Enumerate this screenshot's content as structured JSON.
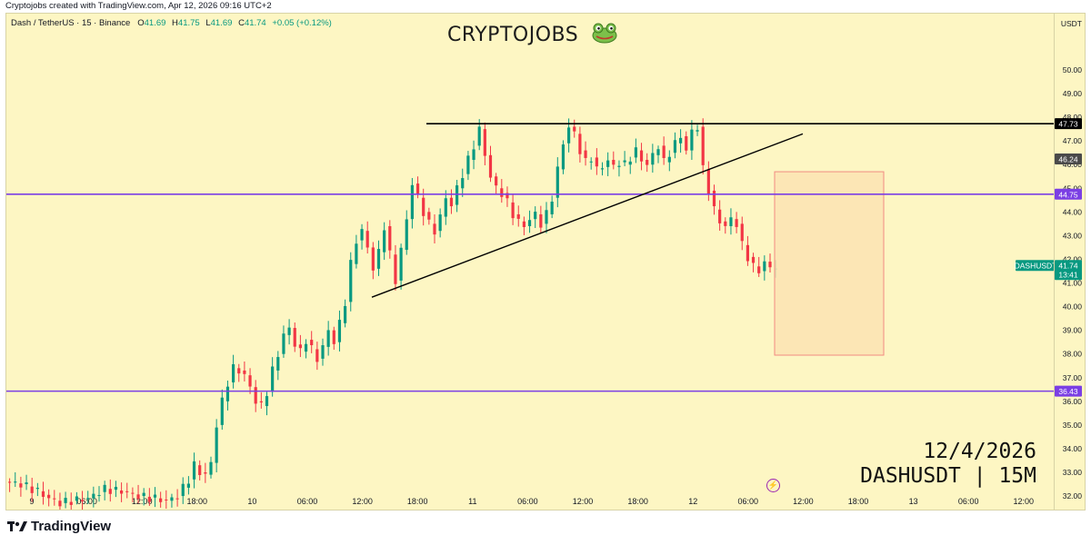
{
  "topbar": {
    "text": "Cryptojobs created with TradingView.com, Apr 12, 2026 09:16 UTC+2"
  },
  "legend": {
    "symbol": "Dash / TetherUS · 15 · Binance",
    "o_label": "O",
    "o": "41.69",
    "h_label": "H",
    "h": "41.75",
    "l_label": "L",
    "l": "41.69",
    "c_label": "C",
    "c": "41.74",
    "change": "+0.05 (+0.12%)"
  },
  "watermark": {
    "text": "CRYPTOJOBS",
    "icon": "frog-icon"
  },
  "signature": {
    "date": "12/4/2026",
    "pair": "DASHUSDT | 15M"
  },
  "footer": {
    "brand": "TradingView",
    "icon": "tradingview-logo-icon"
  },
  "colors": {
    "background": "#fdf6c3",
    "up": "#089981",
    "down": "#f23645",
    "level_line": "#7b3fe4",
    "trendline": "#000000",
    "target_box_fill": "#fbe3b3",
    "target_box_border": "#f28b82"
  },
  "chart_data": {
    "type": "candlestick",
    "symbol": "DASHUSDT",
    "timeframe": "15",
    "currency": "USDT",
    "ylim": [
      31.3,
      50.9
    ],
    "yticks": [
      "50.00",
      "49.00",
      "48.00",
      "47.00",
      "46.00",
      "45.00",
      "44.00",
      "43.00",
      "42.00",
      "41.00",
      "40.00",
      "39.00",
      "38.00",
      "37.00",
      "36.00",
      "35.00",
      "34.00",
      "33.00",
      "32.00"
    ],
    "xticks": [
      "9",
      "06:00",
      "12:00",
      "18:00",
      "10",
      "06:00",
      "12:00",
      "18:00",
      "11",
      "06:00",
      "12:00",
      "18:00",
      "12",
      "06:00",
      "12:00",
      "18:00",
      "13",
      "06:00",
      "12:00"
    ],
    "price_path": [
      [
        0,
        32.6
      ],
      [
        3,
        32.5
      ],
      [
        6,
        32.2
      ],
      [
        8,
        31.9
      ],
      [
        10,
        31.7
      ],
      [
        12,
        31.8
      ],
      [
        15,
        31.9
      ],
      [
        18,
        32.3
      ],
      [
        21,
        32.2
      ],
      [
        24,
        32.0
      ],
      [
        27,
        31.9
      ],
      [
        29,
        31.8
      ],
      [
        31,
        32.0
      ],
      [
        33,
        32.7
      ],
      [
        34,
        33.3
      ],
      [
        35,
        33.0
      ],
      [
        36,
        32.9
      ],
      [
        37,
        33.4
      ],
      [
        38,
        35.0
      ],
      [
        39,
        36.0
      ],
      [
        40,
        36.8
      ],
      [
        41,
        37.4
      ],
      [
        42,
        37.3
      ],
      [
        43,
        37.1
      ],
      [
        44,
        36.6
      ],
      [
        45,
        36.0
      ],
      [
        46,
        35.8
      ],
      [
        47,
        36.4
      ],
      [
        48,
        37.3
      ],
      [
        49,
        38.0
      ],
      [
        50,
        38.8
      ],
      [
        51,
        39.1
      ],
      [
        52,
        38.4
      ],
      [
        53,
        38.1
      ],
      [
        54,
        38.6
      ],
      [
        55,
        38.2
      ],
      [
        56,
        37.8
      ],
      [
        57,
        38.3
      ],
      [
        58,
        39.0
      ],
      [
        59,
        38.5
      ],
      [
        60,
        39.3
      ],
      [
        61,
        40.2
      ],
      [
        62,
        41.8
      ],
      [
        63,
        42.8
      ],
      [
        64,
        43.2
      ],
      [
        65,
        42.5
      ],
      [
        66,
        41.6
      ],
      [
        67,
        42.3
      ],
      [
        68,
        43.4
      ],
      [
        69,
        42.2
      ],
      [
        70,
        41.1
      ],
      [
        71,
        42.4
      ],
      [
        72,
        43.7
      ],
      [
        73,
        45.2
      ],
      [
        74,
        44.6
      ],
      [
        75,
        44.0
      ],
      [
        76,
        43.5
      ],
      [
        77,
        43.2
      ],
      [
        78,
        43.8
      ],
      [
        79,
        44.6
      ],
      [
        80,
        44.3
      ],
      [
        81,
        45.0
      ],
      [
        82,
        45.6
      ],
      [
        83,
        46.2
      ],
      [
        84,
        46.8
      ],
      [
        85,
        47.5
      ],
      [
        86,
        46.4
      ],
      [
        87,
        45.5
      ],
      [
        88,
        45.0
      ],
      [
        89,
        44.8
      ],
      [
        90,
        44.4
      ],
      [
        91,
        43.9
      ],
      [
        92,
        43.6
      ],
      [
        93,
        43.4
      ],
      [
        94,
        43.7
      ],
      [
        95,
        43.9
      ],
      [
        96,
        43.5
      ],
      [
        97,
        43.9
      ],
      [
        98,
        44.6
      ],
      [
        99,
        45.8
      ],
      [
        100,
        46.9
      ],
      [
        101,
        47.6
      ],
      [
        102,
        47.3
      ],
      [
        103,
        46.6
      ],
      [
        104,
        46.1
      ],
      [
        105,
        46.3
      ],
      [
        106,
        45.8
      ],
      [
        107,
        45.9
      ],
      [
        108,
        46.2
      ],
      [
        109,
        45.9
      ],
      [
        110,
        46.1
      ],
      [
        111,
        46.0
      ],
      [
        112,
        46.3
      ],
      [
        113,
        46.6
      ],
      [
        114,
        46.2
      ],
      [
        115,
        46.0
      ],
      [
        116,
        46.4
      ],
      [
        117,
        46.8
      ],
      [
        118,
        46.1
      ],
      [
        119,
        46.5
      ],
      [
        120,
        46.9
      ],
      [
        121,
        47.2
      ],
      [
        122,
        46.6
      ],
      [
        123,
        47.4
      ],
      [
        124,
        47.6
      ],
      [
        125,
        45.8
      ],
      [
        126,
        44.9
      ],
      [
        127,
        44.1
      ],
      [
        128,
        43.6
      ],
      [
        129,
        43.4
      ],
      [
        130,
        43.7
      ],
      [
        131,
        43.5
      ],
      [
        132,
        42.6
      ],
      [
        133,
        42.1
      ],
      [
        134,
        41.7
      ],
      [
        135,
        41.5
      ],
      [
        136,
        41.9
      ],
      [
        137,
        41.6
      ],
      [
        138,
        41.74
      ]
    ],
    "horizontal_levels": [
      {
        "price": 47.73,
        "label": "47.73",
        "color": "#000000"
      },
      {
        "price": 44.75,
        "label": "44.75",
        "color": "#7b3fe4"
      },
      {
        "price": 36.43,
        "label": "36.43",
        "color": "#7b3fe4"
      }
    ],
    "price_labels": [
      {
        "price": 46.24,
        "label": "46.24",
        "color": "#4a4a4a"
      }
    ],
    "current_price": {
      "price": 41.74,
      "label": "41.74",
      "countdown": "13:41",
      "symbol_label": "DASHUSDT"
    },
    "trendline": {
      "from": {
        "time": "10 15:00",
        "price": 40.4
      },
      "to": {
        "time": "12 11:00",
        "price": 47.3
      }
    },
    "target_box": {
      "price_top": 45.7,
      "price_bottom": 37.95
    }
  }
}
